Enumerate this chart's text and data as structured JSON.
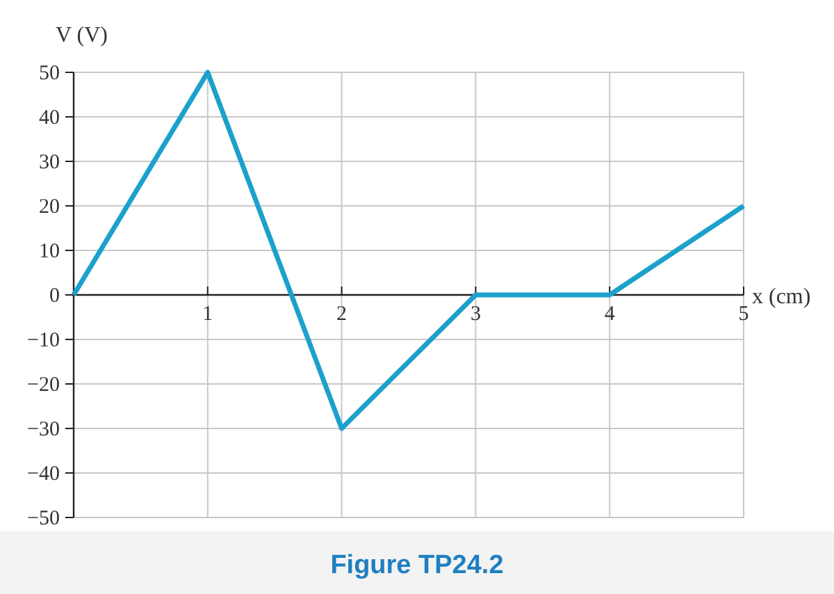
{
  "chart_data": {
    "type": "line",
    "title": "Figure TP24.2",
    "xlabel": "x (cm)",
    "ylabel": "V (V)",
    "x": [
      0,
      1,
      2,
      3,
      4,
      5
    ],
    "series": [
      {
        "color": "#1ba1cc",
        "values": [
          0,
          50,
          -30,
          0,
          0,
          20
        ]
      }
    ],
    "xlim": [
      0,
      5
    ],
    "xticks": [
      1,
      2,
      3,
      4,
      5
    ],
    "ylim": [
      -50,
      50
    ],
    "yticks": [
      {
        "value": -50,
        "label": "−50"
      },
      {
        "value": -40,
        "label": "−40"
      },
      {
        "value": -30,
        "label": "−30"
      },
      {
        "value": -20,
        "label": "−20"
      },
      {
        "value": -10,
        "label": "−10"
      },
      0,
      10,
      20,
      30,
      40,
      50
    ],
    "grid": true,
    "marker": "none",
    "line_style": "solid"
  }
}
